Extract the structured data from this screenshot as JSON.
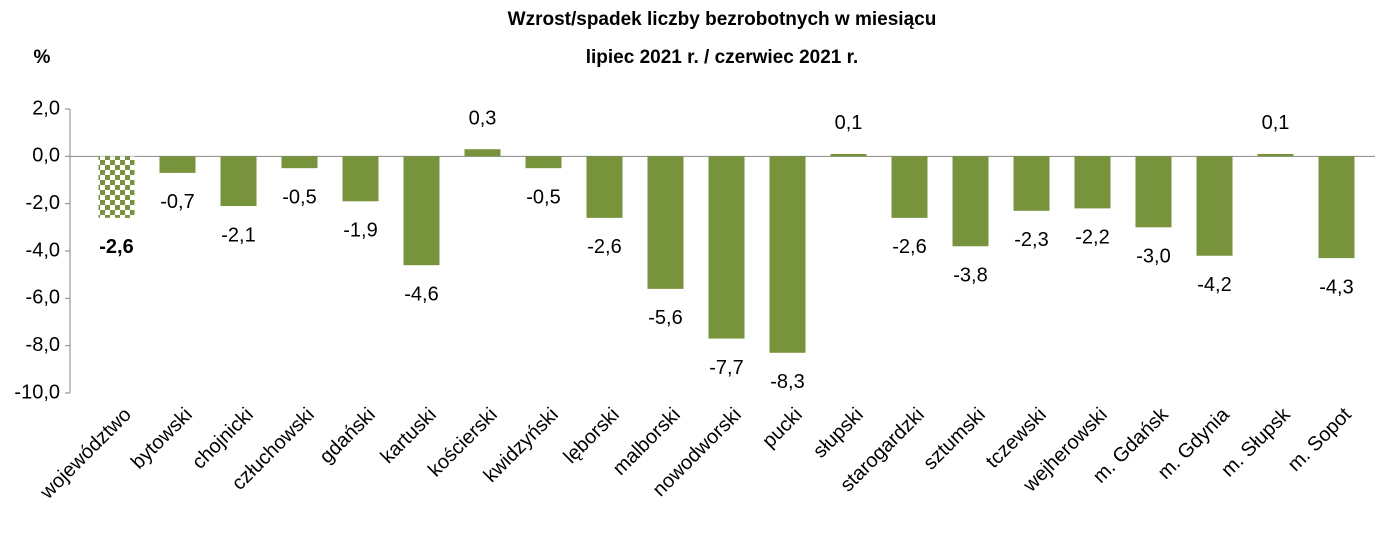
{
  "chart_data": {
    "type": "bar",
    "title": [
      "Wzrost/spadek liczby bezrobotnych w miesiącu",
      "lipiec 2021 r. / czerwiec 2021 r."
    ],
    "ylabel": "%",
    "categories": [
      "województwo",
      "bytowski",
      "chojnicki",
      "człuchowski",
      "gdański",
      "kartuski",
      "kościerski",
      "kwidzyński",
      "lęborski",
      "malborski",
      "nowodworski",
      "pucki",
      "słupski",
      "starogardzki",
      "sztumski",
      "tczewski",
      "wejherowski",
      "m. Gdańsk",
      "m. Gdynia",
      "m. Słupsk",
      "m. Sopot"
    ],
    "values": [
      -2.6,
      -0.7,
      -2.1,
      -0.5,
      -1.9,
      -4.6,
      0.3,
      -0.5,
      -2.6,
      -5.6,
      -7.7,
      -8.3,
      0.1,
      -2.6,
      -3.8,
      -2.3,
      -2.2,
      -3.0,
      -4.2,
      0.1,
      -4.3
    ],
    "value_labels": [
      "-2,6",
      "-0,7",
      "-2,1",
      "-0,5",
      "-1,9",
      "-4,6",
      "0,3",
      "-0,5",
      "-2,6",
      "-5,6",
      "-7,7",
      "-8,3",
      "0,1",
      "-2,6",
      "-3,8",
      "-2,3",
      "-2,2",
      "-3,0",
      "-4,2",
      "0,1",
      "-4,3"
    ],
    "color": "#77933c",
    "highlight_index": 0,
    "ylim": [
      -10,
      2
    ],
    "yticks": [
      {
        "value": -10,
        "label": "-10,0"
      },
      {
        "value": -8,
        "label": "-8,0"
      },
      {
        "value": -6,
        "label": "-6,0"
      },
      {
        "value": -4,
        "label": "-4,0"
      },
      {
        "value": -2,
        "label": "-2,0"
      },
      {
        "value": 0,
        "label": "0,0"
      },
      {
        "value": 2,
        "label": "2,0"
      }
    ]
  }
}
